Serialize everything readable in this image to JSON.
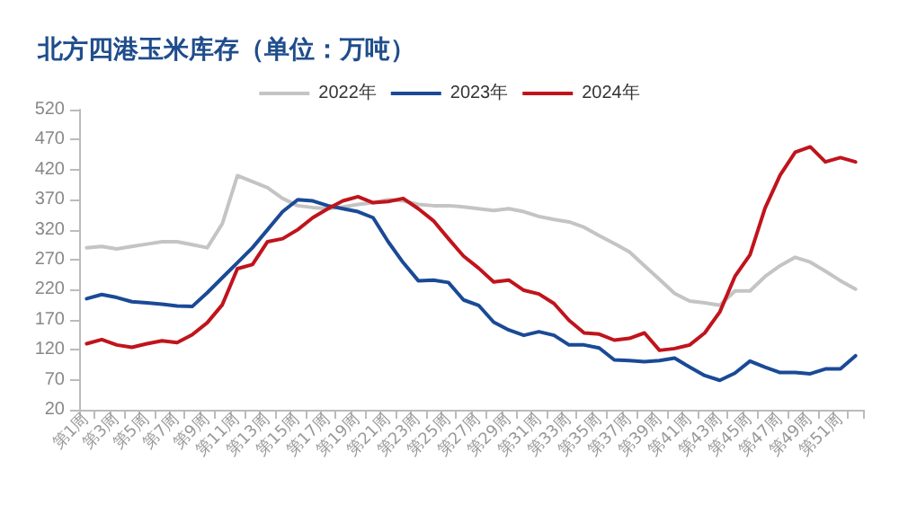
{
  "chart_data": {
    "type": "line",
    "title": "北方四港玉米库存（单位：万吨）",
    "categories": [
      "第1周",
      null,
      "第3周",
      null,
      "第5周",
      null,
      "第7周",
      null,
      "第9周",
      null,
      "第11周",
      null,
      "第13周",
      null,
      "第15周",
      null,
      "第17周",
      null,
      "第19周",
      null,
      "第21周",
      null,
      "第23周",
      null,
      "第25周",
      null,
      "第27周",
      null,
      "第29周",
      null,
      "第31周",
      null,
      "第33周",
      null,
      "第35周",
      null,
      "第37周",
      null,
      "第39周",
      null,
      "第41周",
      null,
      "第43周",
      null,
      "第45周",
      null,
      "第47周",
      null,
      "第49周",
      null,
      "第51周",
      null
    ],
    "series": [
      {
        "name": "2022年",
        "color": "#c4c4c4",
        "values": [
          290,
          292,
          288,
          292,
          296,
          300,
          300,
          295,
          290,
          330,
          410,
          400,
          390,
          372,
          360,
          357,
          355,
          358,
          362,
          365,
          370,
          368,
          362,
          360,
          360,
          358,
          355,
          352,
          355,
          350,
          342,
          337,
          333,
          324,
          310,
          297,
          283,
          260,
          237,
          214,
          201,
          198,
          194,
          218,
          218,
          242,
          260,
          274,
          266,
          251,
          235,
          221
        ]
      },
      {
        "name": "2023年",
        "color": "#1a4a96",
        "values": [
          205,
          212,
          207,
          200,
          198,
          196,
          193,
          192,
          215,
          240,
          265,
          290,
          320,
          350,
          370,
          368,
          360,
          355,
          350,
          340,
          300,
          265,
          235,
          236,
          232,
          203,
          194,
          166,
          153,
          144,
          150,
          144,
          128,
          128,
          123,
          103,
          102,
          100,
          102,
          106,
          91,
          77,
          69,
          81,
          101,
          91,
          82,
          82,
          80,
          88,
          88,
          110
        ]
      },
      {
        "name": "2024年",
        "color": "#c0141c",
        "values": [
          130,
          137,
          128,
          124,
          130,
          135,
          132,
          145,
          165,
          195,
          255,
          262,
          300,
          305,
          320,
          340,
          355,
          368,
          375,
          365,
          367,
          372,
          355,
          335,
          305,
          276,
          256,
          233,
          236,
          219,
          213,
          197,
          169,
          148,
          146,
          136,
          139,
          148,
          119,
          122,
          128,
          148,
          183,
          242,
          278,
          356,
          411,
          449,
          458,
          433,
          440,
          433
        ]
      }
    ],
    "ylim": [
      20,
      520
    ],
    "yticks": [
      20,
      70,
      120,
      170,
      220,
      270,
      320,
      370,
      420,
      470,
      520
    ],
    "grid": false,
    "legend": "top",
    "marker": "none",
    "line_style": "solid"
  }
}
